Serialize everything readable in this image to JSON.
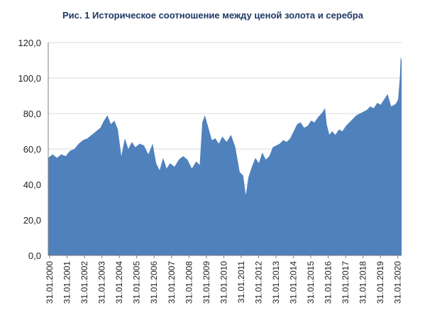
{
  "chart_data": {
    "type": "area",
    "title": "Рис. 1 Историческое соотношение между ценой золота и серебра",
    "xlabel": "",
    "ylabel": "",
    "ylim": [
      0,
      120
    ],
    "y_ticks": [
      "0,0",
      "20,0",
      "40,0",
      "60,0",
      "80,0",
      "100,0",
      "120,0"
    ],
    "x_ticks": [
      "31.01.2000",
      "31.01.2001",
      "31.01.2002",
      "31.01.2003",
      "31.01.2004",
      "31.01.2005",
      "31.01.2006",
      "31.01.2007",
      "31.01.2008",
      "31.01.2009",
      "31.01.2010",
      "31.01.2011",
      "31.01.2012",
      "31.01.2013",
      "31.01.2014",
      "31.01.2015",
      "31.01.2016",
      "31.01.2017",
      "31.01.2018",
      "31.01.2019",
      "31.01.2020"
    ],
    "grid": true,
    "legend": "none",
    "color": "#4f81bd",
    "x": [
      2000.0,
      2000.25,
      2000.5,
      2000.75,
      2001.0,
      2001.25,
      2001.5,
      2001.75,
      2002.0,
      2002.25,
      2002.5,
      2002.75,
      2003.0,
      2003.2,
      2003.4,
      2003.6,
      2003.8,
      2004.0,
      2004.2,
      2004.4,
      2004.6,
      2004.8,
      2005.0,
      2005.25,
      2005.5,
      2005.75,
      2006.0,
      2006.2,
      2006.4,
      2006.6,
      2006.8,
      2007.0,
      2007.25,
      2007.5,
      2007.75,
      2008.0,
      2008.25,
      2008.5,
      2008.7,
      2008.85,
      2009.0,
      2009.2,
      2009.4,
      2009.6,
      2009.8,
      2010.0,
      2010.25,
      2010.5,
      2010.75,
      2011.0,
      2011.2,
      2011.35,
      2011.5,
      2011.7,
      2011.9,
      2012.1,
      2012.3,
      2012.5,
      2012.7,
      2012.9,
      2013.1,
      2013.3,
      2013.5,
      2013.7,
      2013.9,
      2014.1,
      2014.3,
      2014.5,
      2014.7,
      2014.9,
      2015.1,
      2015.3,
      2015.5,
      2015.7,
      2015.9,
      2016.0,
      2016.15,
      2016.3,
      2016.5,
      2016.7,
      2016.9,
      2017.1,
      2017.3,
      2017.5,
      2017.7,
      2017.9,
      2018.1,
      2018.3,
      2018.5,
      2018.7,
      2018.9,
      2019.1,
      2019.3,
      2019.5,
      2019.7,
      2019.9,
      2020.0,
      2020.1,
      2020.2,
      2020.25,
      2020.3
    ],
    "values": [
      55,
      57,
      55,
      57,
      56,
      59,
      60,
      63,
      65,
      66,
      68,
      70,
      72,
      76,
      79,
      74,
      76,
      71,
      56,
      66,
      60,
      64,
      61,
      63,
      62,
      57,
      63,
      52,
      48,
      55,
      49,
      52,
      50,
      54,
      56,
      54,
      49,
      53,
      51,
      75,
      79,
      72,
      65,
      66,
      63,
      67,
      64,
      68,
      61,
      47,
      45,
      34,
      44,
      50,
      55,
      52,
      58,
      54,
      56,
      61,
      62,
      63,
      65,
      64,
      66,
      70,
      74,
      75,
      72,
      73,
      76,
      75,
      78,
      80,
      83,
      74,
      68,
      70,
      68,
      71,
      70,
      73,
      75,
      77,
      79,
      80,
      81,
      82,
      84,
      83,
      86,
      85,
      88,
      91,
      84,
      85,
      86,
      88,
      100,
      112,
      110
    ]
  }
}
